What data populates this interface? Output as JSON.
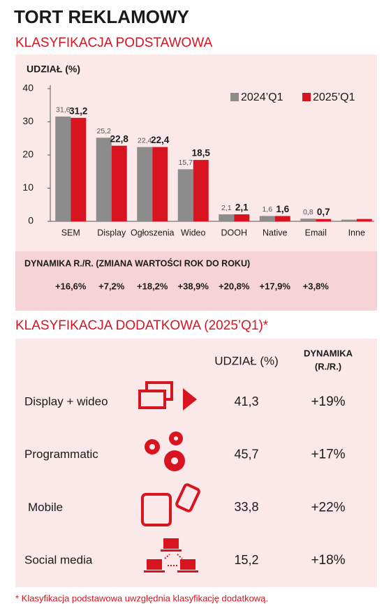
{
  "title": "TORT REKLAMOWY",
  "section1_title": "KLASYFIKACJA PODSTAWOWA",
  "chart_data": {
    "type": "bar",
    "y_label": "UDZIAŁ (%)",
    "categories": [
      "SEM",
      "Display",
      "Ogłoszenia",
      "Wideo",
      "DOOH",
      "Native",
      "Email",
      "Inne"
    ],
    "series": [
      {
        "name": "2024’Q1",
        "color": "#8c8c8c",
        "values": [
          31.6,
          25.2,
          22.4,
          15.7,
          2.1,
          1.6,
          0.8,
          0.5
        ],
        "value_labels": [
          "31,6",
          "25,2",
          "22,4",
          "15,7",
          "2,1",
          "1,6",
          "0,8",
          null
        ]
      },
      {
        "name": "2025’Q1",
        "color": "#d7141f",
        "values": [
          31.2,
          22.8,
          22.4,
          18.5,
          2.1,
          1.6,
          0.7,
          0.7
        ],
        "value_labels": [
          "31,2",
          "22,8",
          "22,4",
          "18,5",
          "2,1",
          "1,6",
          "0,7",
          null
        ]
      }
    ],
    "ylim": [
      0,
      40
    ],
    "yticks": [
      0,
      10,
      20,
      30,
      40
    ],
    "grid": false,
    "legend": "top-right"
  },
  "dynamics": {
    "label": "DYNAMIKA R./R. (ZMIANA WARTOŚCI ROK DO ROKU)",
    "values": [
      "+16,6%",
      "+7,2%",
      "+18,2%",
      "+38,9%",
      "+20,8%",
      "+17,9%",
      "+3,8%"
    ]
  },
  "section2_title": "KLASYFIKACJA DODATKOWA (2025’Q1)*",
  "table": {
    "headers": {
      "share": "UDZIAŁ (%)",
      "dynamics": [
        "DYNAMIKA",
        "(R./R.)"
      ]
    },
    "rows": [
      [
        "Display + wideo",
        "41,3",
        "+19%"
      ],
      [
        "Programmatic",
        "45,7",
        "+17%"
      ],
      [
        "Mobile",
        "33,8",
        "+22%"
      ],
      [
        "Social media",
        "15,2",
        "+18%"
      ]
    ]
  },
  "footnote": "* Klasyfikacja podstawowa uwzględnia klasyfikację dodatkową."
}
